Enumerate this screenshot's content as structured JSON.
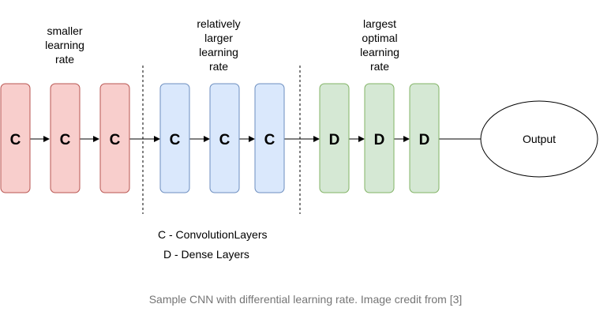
{
  "diagram": {
    "groups": [
      {
        "label": "smaller\nlearning\nrate",
        "fill": "#f8cecc",
        "stroke": "#b85450",
        "layers": [
          "C",
          "C",
          "C"
        ]
      },
      {
        "label": "relatively\nlarger\nlearning\nrate",
        "fill": "#dae8fc",
        "stroke": "#6c8ebf",
        "layers": [
          "C",
          "C",
          "C"
        ]
      },
      {
        "label": "largest\noptimal\nlearning\nrate",
        "fill": "#d5e8d4",
        "stroke": "#82b366",
        "layers": [
          "D",
          "D",
          "D"
        ]
      }
    ],
    "output_label": "Output",
    "legend": {
      "line1": "C - ConvolutionLayers",
      "line2": "D - Dense Layers"
    }
  },
  "caption": "Sample CNN with differential learning rate. Image credit from [3]"
}
